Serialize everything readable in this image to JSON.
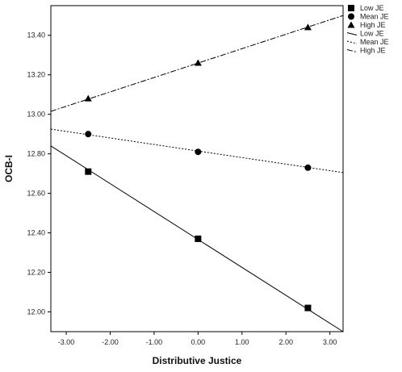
{
  "chart_data": {
    "type": "line",
    "xlabel": "Distributive Justice",
    "ylabel": "OCB-I",
    "xlim": [
      -3.35,
      3.3
    ],
    "ylim": [
      11.9,
      13.55
    ],
    "xticks": [
      -3,
      -2,
      -1,
      0,
      1,
      2,
      3
    ],
    "xtick_labels": [
      "-3.00",
      "-2.00",
      "-1.00",
      "0.00",
      "1.00",
      "2.00",
      "3.00"
    ],
    "yticks": [
      12.0,
      12.2,
      12.4,
      12.6,
      12.8,
      13.0,
      13.2,
      13.4
    ],
    "ytick_labels": [
      "12.00",
      "12.20",
      "12.40",
      "12.60",
      "12.80",
      "13.00",
      "13.20",
      "13.40"
    ],
    "grid": false,
    "legend_position": "right",
    "point_series": [
      {
        "name": "Low JE",
        "marker": "square",
        "x": [
          -2.5,
          0,
          2.5
        ],
        "y": [
          12.71,
          12.37,
          12.02
        ]
      },
      {
        "name": "Mean JE",
        "marker": "circle",
        "x": [
          -2.5,
          0,
          2.5
        ],
        "y": [
          12.9,
          12.81,
          12.73
        ]
      },
      {
        "name": "High JE",
        "marker": "triangle",
        "x": [
          -2.5,
          0,
          2.5
        ],
        "y": [
          13.08,
          13.26,
          13.44
        ]
      }
    ],
    "line_series": [
      {
        "name": "Low JE",
        "dash": "solid",
        "x": [
          -3.35,
          3.3
        ],
        "y": [
          12.84,
          11.9
        ]
      },
      {
        "name": "Mean JE",
        "dash": "dotted",
        "x": [
          -3.35,
          3.3
        ],
        "y": [
          12.925,
          12.705
        ]
      },
      {
        "name": "High JE",
        "dash": "dashdot",
        "x": [
          -3.35,
          3.3
        ],
        "y": [
          13.015,
          13.5
        ]
      }
    ],
    "colors": {
      "line": "#000000",
      "frame": "#000000"
    }
  }
}
